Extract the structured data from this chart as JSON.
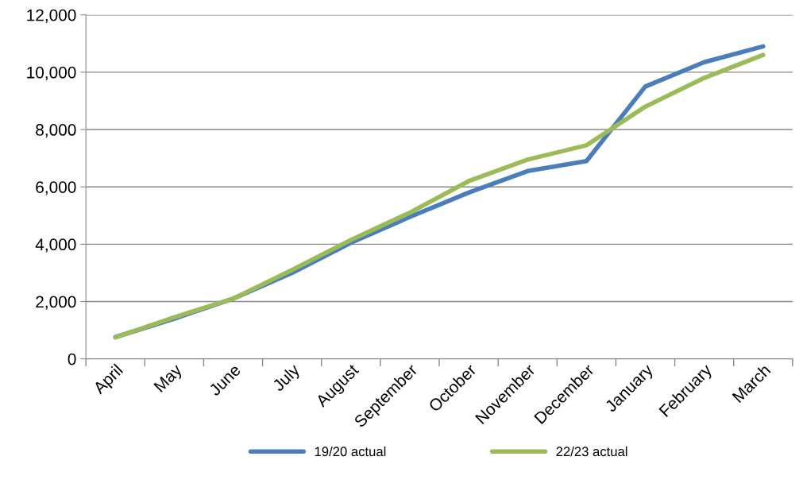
{
  "chart_data": {
    "type": "line",
    "categories": [
      "April",
      "May",
      "June",
      "July",
      "August",
      "September",
      "October",
      "November",
      "December",
      "January",
      "February",
      "March"
    ],
    "series": [
      {
        "name": "19/20 actual",
        "color": "#4a7ebb",
        "values": [
          760,
          1400,
          2100,
          3000,
          4050,
          4950,
          5800,
          6550,
          6900,
          9500,
          10350,
          10900
        ]
      },
      {
        "name": "22/23 actual",
        "color": "#9bbb59",
        "values": [
          750,
          1450,
          2100,
          3100,
          4150,
          5100,
          6200,
          6950,
          7450,
          8800,
          9800,
          10600
        ]
      }
    ],
    "ylim": [
      0,
      12000
    ],
    "yticks": [
      {
        "value": 0,
        "label": "0"
      },
      {
        "value": 2000,
        "label": "2,000"
      },
      {
        "value": 4000,
        "label": "4,000"
      },
      {
        "value": 6000,
        "label": "6,000"
      },
      {
        "value": 8000,
        "label": "8,000"
      },
      {
        "value": 10000,
        "label": "10,000"
      },
      {
        "value": 12000,
        "label": "12,000"
      }
    ],
    "grid": "y",
    "legend": "bottom",
    "marker": "none",
    "line_style": "solid"
  }
}
